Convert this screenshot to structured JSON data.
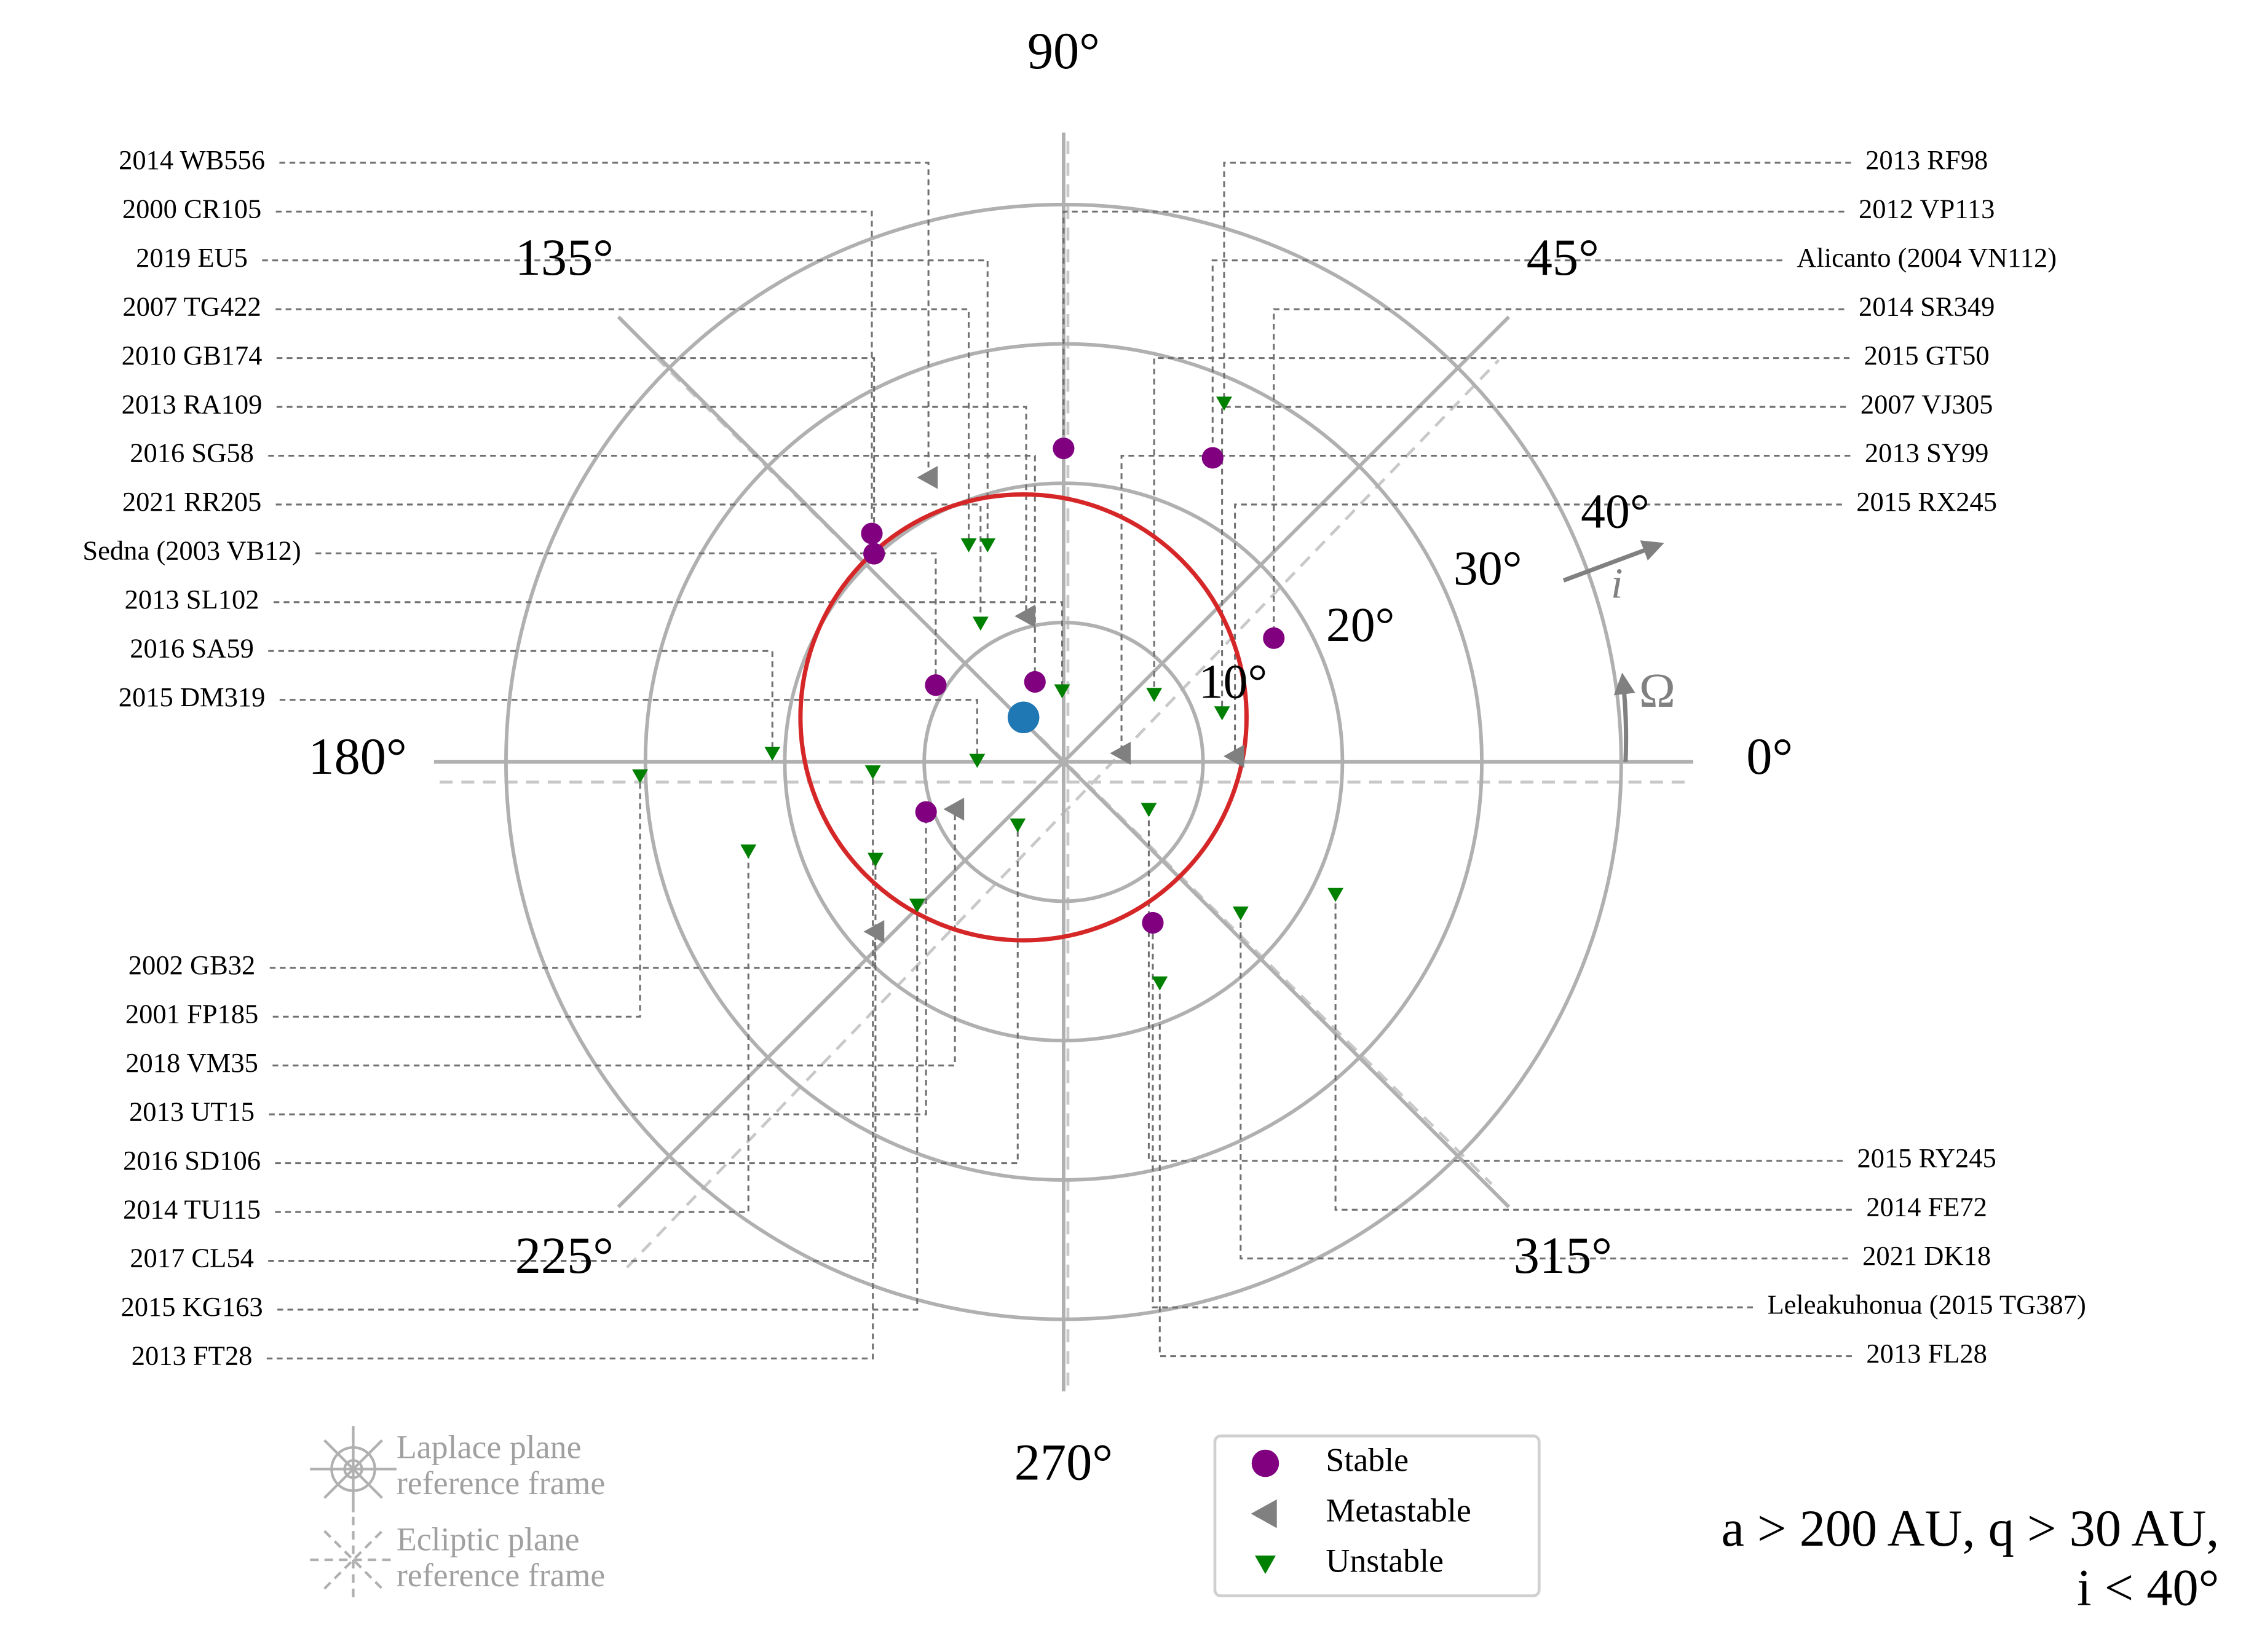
{
  "chart_data": {
    "type": "polar",
    "rlim": [
      0,
      40
    ],
    "rticks": [
      {
        "value": 10,
        "label": "10°"
      },
      {
        "value": 20,
        "label": "20°"
      },
      {
        "value": 30,
        "label": "30°"
      },
      {
        "value": 40,
        "label": "40°"
      }
    ],
    "thetaticks": [
      {
        "value": 0,
        "label": "0°"
      },
      {
        "value": 45,
        "label": "45°"
      },
      {
        "value": 90,
        "label": "90°"
      },
      {
        "value": 135,
        "label": "135°"
      },
      {
        "value": 180,
        "label": "180°"
      },
      {
        "value": 225,
        "label": "225°"
      },
      {
        "value": 270,
        "label": "270°"
      },
      {
        "value": 315,
        "label": "315°"
      }
    ],
    "theta_axis_label": "Ω",
    "r_axis_label": "i",
    "series": [
      {
        "name": "Stable",
        "color": "#800080",
        "marker": "circle",
        "labels": [
          "2012 VP113",
          "Alicanto (2004 VN112)",
          "2000 CR105",
          "2010 GB174",
          "2014 SR349",
          "Sedna (2003 VB12)",
          "2016 SG58",
          "2013 UT15",
          "Leleakuhonua (2015 TG387)"
        ],
        "x": [
          90,
          63.9,
          130,
          132.3,
          30.5,
          149,
          109.7,
          200,
          299
        ],
        "values": [
          22.5,
          24.3,
          21.4,
          20.2,
          17.5,
          10.7,
          6.1,
          10.5,
          13.2
        ]
      },
      {
        "name": "Metastable",
        "color": "#808080",
        "marker": "triangle-left",
        "labels": [
          "2014 WB556",
          "2013 RA109",
          "2013 SY99",
          "2015 RX245",
          "2018 VM35",
          "2002 GB32"
        ],
        "x": [
          115.4,
          104.4,
          8.5,
          1.9,
          203.5,
          222
        ],
        "values": [
          22.6,
          10.8,
          4.2,
          12.3,
          8.5,
          18.2
        ]
      },
      {
        "name": "Unstable",
        "color": "#008000",
        "marker": "triangle-down",
        "labels": [
          "2013 RF98",
          "2007 TG422",
          "2019 EU5",
          "2021 RR205",
          "2013 SL102",
          "2015 GT50",
          "2007 VJ305",
          "2016 SA59",
          "2015 DM319",
          "2001 FP185",
          "2013 FT28",
          "2015 RY245",
          "2016 SD106",
          "2014 TU115",
          "2017 CL54",
          "2015 KG163",
          "2021 DK18",
          "2014 FE72",
          "2013 FL28"
        ],
        "x": [
          65.9,
          113.6,
          109.3,
          120.9,
          91.2,
          36.7,
          17.2,
          178.3,
          179,
          181.9,
          183,
          330.8,
          234,
          195.8,
          207.4,
          224.4,
          319.5,
          334,
          293.5
        ],
        "values": [
          28.2,
          17.0,
          16.5,
          11.6,
          5.1,
          8.1,
          11.9,
          20.9,
          6.2,
          30.4,
          13.7,
          7.0,
          5.6,
          23.5,
          15.2,
          14.7,
          16.7,
          21.7,
          17.3
        ]
      }
    ],
    "pole": {
      "x": 132,
      "value": 4.3,
      "color": "#1f77b4"
    },
    "pole_circle": {
      "radius": 16,
      "color": "#d62728"
    },
    "frame_legend": [
      [
        "Laplace plane",
        "reference frame"
      ],
      [
        "Ecliptic plane",
        "reference frame"
      ]
    ],
    "annotation": [
      "a > 200 AU, q > 30 AU,",
      "i < 40°"
    ]
  }
}
